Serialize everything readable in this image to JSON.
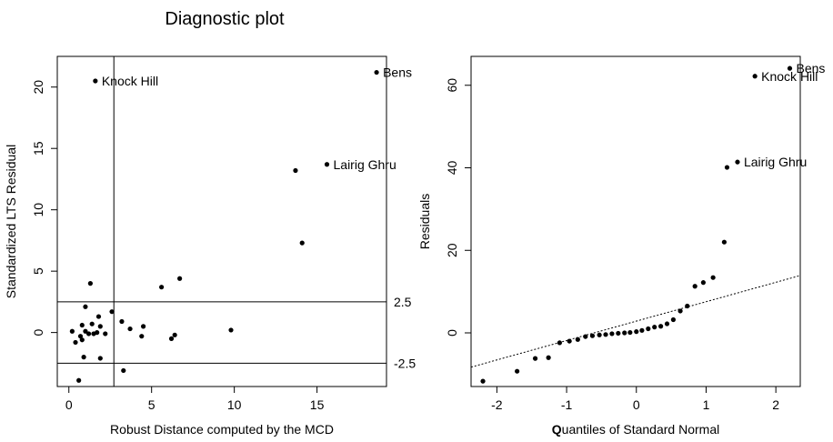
{
  "title": "Diagnostic plot",
  "chart_data": [
    {
      "type": "scatter",
      "xlabel": "Robust Distance computed by the MCD",
      "ylabel": "Standardized LTS Residual",
      "xlim": [
        -0.7,
        19.2
      ],
      "ylim": [
        -4.4,
        22.5
      ],
      "xticks": [
        "0",
        "5",
        "10",
        "15"
      ],
      "yticks": [
        "0",
        "5",
        "10",
        "15",
        "20"
      ],
      "reference_lines": {
        "vertical_x": 2.72,
        "horizontal": [
          2.5,
          -2.5
        ],
        "horizontal_labels": [
          "2.5",
          "-2.5"
        ]
      },
      "labeled_points": [
        {
          "label": "Knock Hill",
          "x": 1.6,
          "y": 20.5
        },
        {
          "label": "Bens",
          "x": 18.6,
          "y": 21.2
        },
        {
          "label": "Lairig Ghru",
          "x": 15.6,
          "y": 13.7
        }
      ],
      "points": [
        {
          "x": 0.2,
          "y": 0.1
        },
        {
          "x": 0.4,
          "y": -0.8
        },
        {
          "x": 0.6,
          "y": -3.9
        },
        {
          "x": 0.7,
          "y": -0.3
        },
        {
          "x": 0.8,
          "y": 0.6
        },
        {
          "x": 0.8,
          "y": -0.6
        },
        {
          "x": 0.9,
          "y": -2.0
        },
        {
          "x": 1.0,
          "y": 2.1
        },
        {
          "x": 1.0,
          "y": 0.1
        },
        {
          "x": 1.2,
          "y": -0.1
        },
        {
          "x": 1.3,
          "y": 4.0
        },
        {
          "x": 1.4,
          "y": 0.7
        },
        {
          "x": 1.5,
          "y": -0.1
        },
        {
          "x": 1.7,
          "y": 0.0
        },
        {
          "x": 1.8,
          "y": 1.3
        },
        {
          "x": 1.9,
          "y": -2.1
        },
        {
          "x": 1.9,
          "y": 0.5
        },
        {
          "x": 2.2,
          "y": -0.1
        },
        {
          "x": 2.6,
          "y": 1.7
        },
        {
          "x": 3.2,
          "y": 0.9
        },
        {
          "x": 3.3,
          "y": -3.1
        },
        {
          "x": 3.7,
          "y": 0.3
        },
        {
          "x": 4.4,
          "y": -0.3
        },
        {
          "x": 4.5,
          "y": 0.5
        },
        {
          "x": 5.6,
          "y": 3.7
        },
        {
          "x": 6.2,
          "y": -0.5
        },
        {
          "x": 6.4,
          "y": -0.2
        },
        {
          "x": 6.7,
          "y": 4.4
        },
        {
          "x": 9.8,
          "y": 0.2
        },
        {
          "x": 13.7,
          "y": 13.2
        },
        {
          "x": 14.1,
          "y": 7.3
        }
      ]
    },
    {
      "type": "scatter",
      "xlabel_prefix": "Q",
      "xlabel_rest": "uantiles of Standard Normal",
      "ylabel": "Residuals",
      "xlim": [
        -2.37,
        2.35
      ],
      "ylim": [
        -13,
        67
      ],
      "xticks": [
        "-2",
        "-1",
        "0",
        "1",
        "2"
      ],
      "yticks": [
        "0",
        "20",
        "40",
        "60"
      ],
      "reference_line": {
        "style": "dashed",
        "x": [
          -2.37,
          2.35
        ],
        "y": [
          -8.3,
          13.9
        ]
      },
      "labeled_points": [
        {
          "label": "Bens",
          "x": 2.2,
          "y": 64.1
        },
        {
          "label": "Knock Hill",
          "x": 1.7,
          "y": 62.2
        },
        {
          "label": "Lairig Ghru",
          "x": 1.45,
          "y": 41.4
        }
      ],
      "points": [
        {
          "x": -2.2,
          "y": -11.7
        },
        {
          "x": -1.71,
          "y": -9.3
        },
        {
          "x": -1.45,
          "y": -6.2
        },
        {
          "x": -1.26,
          "y": -6.0
        },
        {
          "x": -1.1,
          "y": -2.4
        },
        {
          "x": -0.96,
          "y": -2.0
        },
        {
          "x": -0.84,
          "y": -1.6
        },
        {
          "x": -0.73,
          "y": -0.9
        },
        {
          "x": -0.63,
          "y": -0.7
        },
        {
          "x": -0.53,
          "y": -0.5
        },
        {
          "x": -0.44,
          "y": -0.4
        },
        {
          "x": -0.35,
          "y": -0.2
        },
        {
          "x": -0.26,
          "y": -0.1
        },
        {
          "x": -0.17,
          "y": 0.0
        },
        {
          "x": -0.09,
          "y": 0.1
        },
        {
          "x": 0.0,
          "y": 0.3
        },
        {
          "x": 0.08,
          "y": 0.6
        },
        {
          "x": 0.17,
          "y": 1.0
        },
        {
          "x": 0.26,
          "y": 1.4
        },
        {
          "x": 0.35,
          "y": 1.6
        },
        {
          "x": 0.44,
          "y": 2.2
        },
        {
          "x": 0.53,
          "y": 3.2
        },
        {
          "x": 0.63,
          "y": 5.3
        },
        {
          "x": 0.73,
          "y": 6.5
        },
        {
          "x": 0.84,
          "y": 11.3
        },
        {
          "x": 0.96,
          "y": 12.2
        },
        {
          "x": 1.1,
          "y": 13.4
        },
        {
          "x": 1.26,
          "y": 22.0
        },
        {
          "x": 1.3,
          "y": 40.1
        }
      ]
    }
  ]
}
